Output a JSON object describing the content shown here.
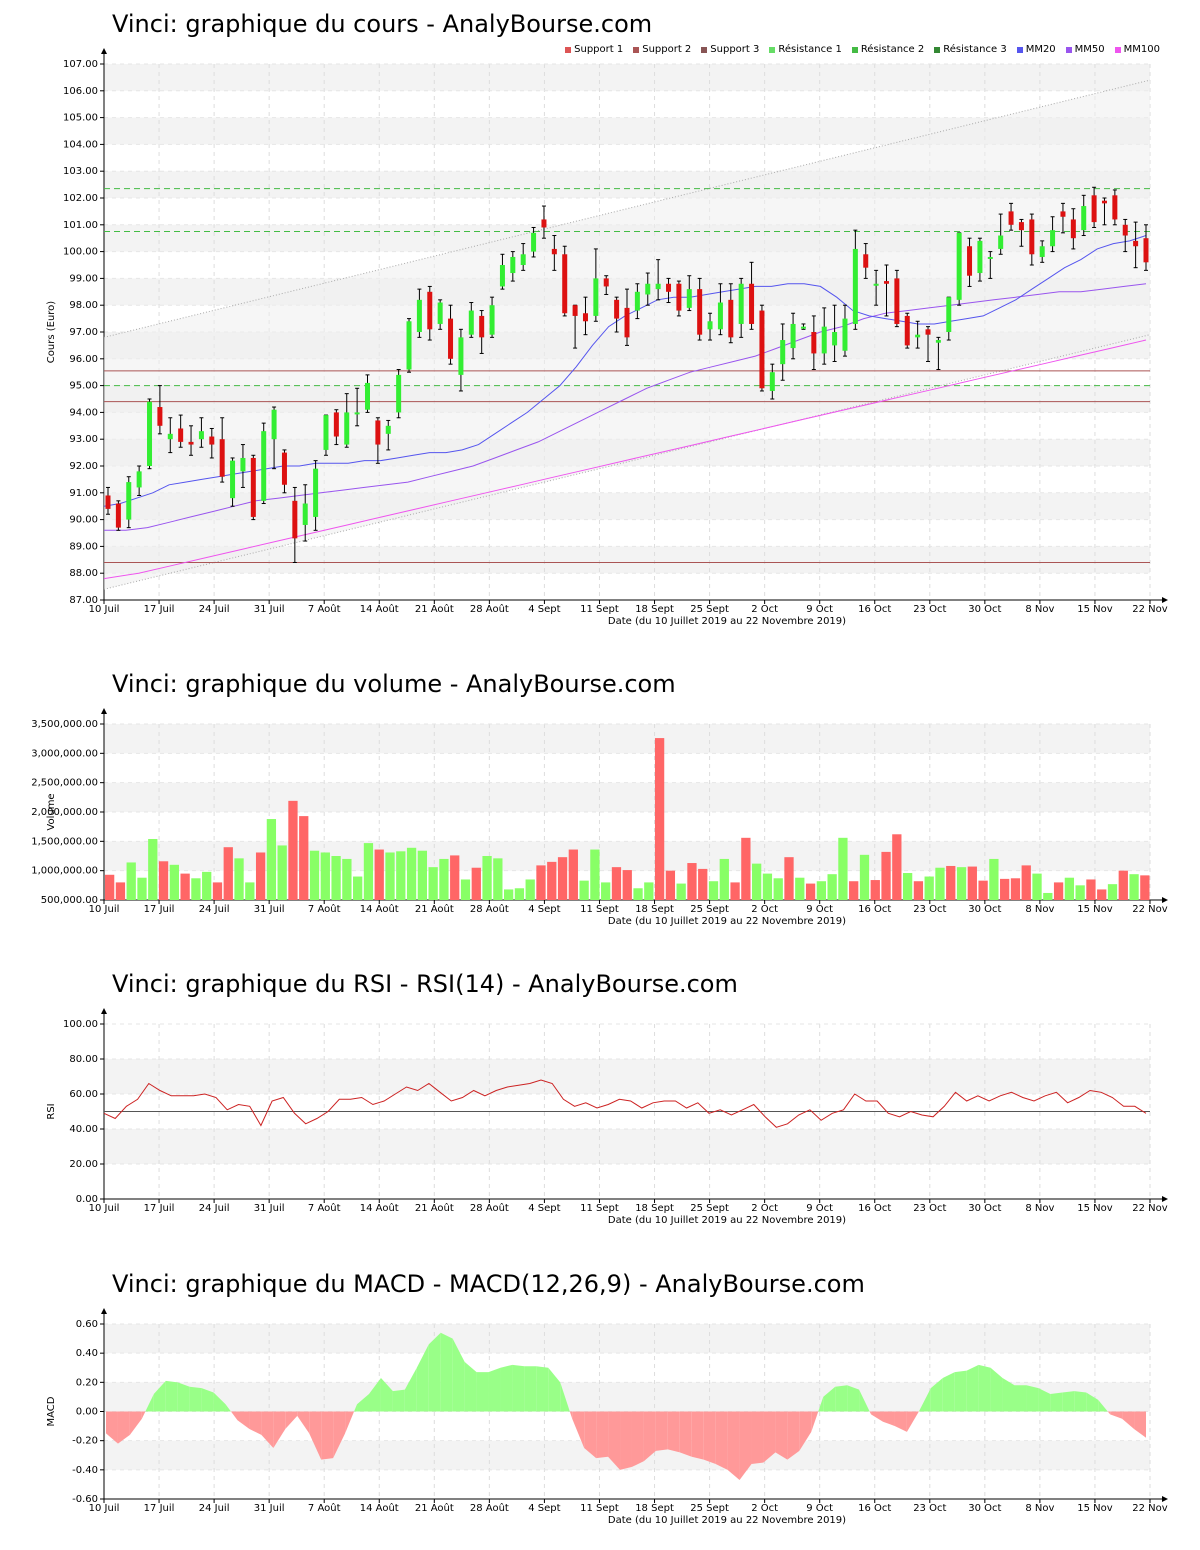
{
  "x_axis": {
    "ticks": [
      "10 Juil",
      "17 Juil",
      "24 Juil",
      "31 Juil",
      "7 Août",
      "14 Août",
      "21 Août",
      "28 Août",
      "4 Sept",
      "11 Sept",
      "18 Sept",
      "25 Sept",
      "2 Oct",
      "9 Oct",
      "16 Oct",
      "23 Oct",
      "30 Oct",
      "8 Nov",
      "15 Nov",
      "22 Nov"
    ],
    "label": "Date (du 10 Juillet 2019 au 22 Novembre 2019)"
  },
  "colors": {
    "up": "#33ee33",
    "down": "#dd1111",
    "vol_up": "#88ff66",
    "vol_down": "#ff6666",
    "mm20": "#5555ee",
    "mm50": "#9955ee",
    "mm100": "#ee55ee",
    "support": "#aa5555",
    "resistance": "#44bb44"
  },
  "price_panel": {
    "title": "Vinci: graphique du cours - AnalyBourse.com",
    "ylabel": "Cours (Euro)",
    "legend": [
      {
        "label": "Support 1",
        "color": "#dd5555"
      },
      {
        "label": "Support 2",
        "color": "#aa5555"
      },
      {
        "label": "Support 3",
        "color": "#885555"
      },
      {
        "label": "Résistance 1",
        "color": "#66dd66"
      },
      {
        "label": "Résistance 2",
        "color": "#44bb44"
      },
      {
        "label": "Résistance 3",
        "color": "#338833"
      },
      {
        "label": "MM20",
        "color": "#5555ee"
      },
      {
        "label": "MM50",
        "color": "#9955ee"
      },
      {
        "label": "MM100",
        "color": "#ee55ee"
      }
    ]
  },
  "volume_panel": {
    "title": "Vinci: graphique du volume - AnalyBourse.com",
    "ylabel": "Volume"
  },
  "rsi_panel": {
    "title": "Vinci: graphique du RSI - RSI(14) - AnalyBourse.com",
    "ylabel": "RSI"
  },
  "macd_panel": {
    "title": "Vinci: graphique du MACD - MACD(12,26,9) - AnalyBourse.com",
    "ylabel": "MACD"
  },
  "chart_data": [
    {
      "type": "candlestick",
      "title": "Vinci: graphique du cours - AnalyBourse.com",
      "ylabel": "Cours (Euro)",
      "xlabel": "Date (du 10 Juillet 2019 au 22 Novembre 2019)",
      "ylim": [
        87,
        107
      ],
      "yticks": [
        "87.00",
        "88.00",
        "89.00",
        "90.00",
        "91.00",
        "92.00",
        "93.00",
        "94.00",
        "95.00",
        "96.00",
        "97.00",
        "98.00",
        "99.00",
        "100.00",
        "101.00",
        "102.00",
        "103.00",
        "104.00",
        "105.00",
        "106.00",
        "107.00"
      ],
      "candles": [
        [
          90.9,
          90.4,
          91.2,
          90.2
        ],
        [
          90.6,
          89.7,
          90.7,
          89.6
        ],
        [
          90.0,
          91.4,
          91.6,
          89.7
        ],
        [
          91.2,
          91.8,
          92.0,
          90.9
        ],
        [
          92.0,
          94.4,
          94.5,
          91.9
        ],
        [
          94.2,
          93.5,
          95.0,
          93.2
        ],
        [
          93.0,
          93.2,
          93.8,
          92.5
        ],
        [
          93.4,
          92.9,
          93.9,
          92.7
        ],
        [
          92.9,
          92.8,
          93.5,
          92.4
        ],
        [
          93.0,
          93.3,
          93.8,
          92.7
        ],
        [
          93.1,
          92.8,
          93.4,
          92.3
        ],
        [
          93.0,
          91.6,
          93.8,
          91.4
        ],
        [
          90.8,
          92.2,
          92.3,
          90.5
        ],
        [
          91.8,
          92.3,
          92.8,
          91.2
        ],
        [
          92.3,
          90.1,
          92.4,
          90.0
        ],
        [
          90.7,
          93.3,
          93.6,
          90.6
        ],
        [
          93.0,
          94.1,
          94.2,
          91.9
        ],
        [
          92.5,
          91.3,
          92.6,
          91.0
        ],
        [
          90.7,
          89.3,
          91.2,
          88.4
        ],
        [
          89.8,
          90.6,
          91.3,
          89.2
        ],
        [
          90.1,
          91.9,
          92.2,
          89.6
        ],
        [
          92.6,
          93.9,
          93.9,
          92.4
        ],
        [
          94.0,
          93.1,
          94.1,
          92.8
        ],
        [
          92.8,
          94.0,
          94.7,
          92.7
        ],
        [
          94.0,
          94.0,
          94.9,
          93.5
        ],
        [
          94.1,
          95.1,
          95.4,
          94.0
        ],
        [
          93.7,
          92.8,
          93.8,
          92.1
        ],
        [
          93.2,
          93.5,
          93.7,
          92.6
        ],
        [
          94.0,
          95.4,
          95.6,
          93.8
        ],
        [
          95.6,
          97.4,
          97.5,
          95.5
        ],
        [
          97.0,
          98.2,
          98.6,
          96.8
        ],
        [
          98.5,
          97.1,
          98.7,
          96.7
        ],
        [
          97.3,
          98.1,
          98.2,
          97.1
        ],
        [
          97.5,
          96.0,
          98.0,
          95.8
        ],
        [
          95.4,
          96.8,
          97.1,
          94.8
        ],
        [
          96.9,
          97.8,
          98.1,
          96.8
        ],
        [
          97.6,
          96.8,
          97.8,
          96.2
        ],
        [
          96.9,
          98.0,
          98.3,
          96.8
        ],
        [
          98.7,
          99.5,
          99.9,
          98.6
        ],
        [
          99.2,
          99.8,
          100.0,
          98.9
        ],
        [
          99.5,
          99.9,
          100.3,
          99.3
        ],
        [
          100.0,
          100.7,
          100.9,
          99.8
        ],
        [
          101.2,
          100.9,
          101.7,
          100.5
        ],
        [
          100.1,
          99.9,
          100.6,
          99.3
        ],
        [
          99.9,
          97.7,
          100.2,
          97.6
        ],
        [
          98.0,
          97.6,
          98.0,
          96.4
        ],
        [
          97.7,
          97.4,
          98.3,
          96.9
        ],
        [
          97.6,
          99.0,
          100.1,
          97.4
        ],
        [
          99.0,
          98.7,
          99.1,
          98.4
        ],
        [
          98.2,
          97.5,
          98.3,
          97.0
        ],
        [
          97.9,
          96.8,
          98.6,
          96.5
        ],
        [
          97.8,
          98.5,
          98.8,
          97.5
        ],
        [
          98.4,
          98.8,
          99.2,
          98.0
        ],
        [
          98.6,
          98.8,
          99.7,
          98.2
        ],
        [
          98.8,
          98.5,
          99.0,
          98.1
        ],
        [
          98.8,
          97.8,
          98.9,
          97.6
        ],
        [
          97.9,
          98.6,
          99.1,
          97.8
        ],
        [
          98.6,
          96.9,
          99.0,
          96.7
        ],
        [
          97.1,
          97.4,
          97.7,
          96.7
        ],
        [
          97.1,
          98.1,
          98.8,
          96.9
        ],
        [
          98.2,
          96.8,
          98.8,
          96.6
        ],
        [
          97.3,
          98.8,
          99.0,
          96.8
        ],
        [
          98.8,
          97.3,
          99.6,
          97.1
        ],
        [
          97.8,
          94.9,
          98.0,
          94.8
        ],
        [
          94.8,
          95.5,
          95.8,
          94.5
        ],
        [
          95.8,
          96.7,
          97.3,
          95.2
        ],
        [
          96.4,
          97.3,
          97.7,
          96.0
        ],
        [
          97.2,
          97.2,
          97.3,
          97.1
        ],
        [
          97.0,
          96.2,
          97.6,
          95.6
        ],
        [
          96.2,
          97.2,
          97.9,
          95.8
        ],
        [
          96.5,
          97.0,
          98.0,
          95.9
        ],
        [
          96.3,
          97.5,
          98.0,
          96.1
        ],
        [
          97.3,
          100.1,
          100.8,
          97.1
        ],
        [
          99.9,
          99.4,
          100.3,
          99.0
        ],
        [
          98.8,
          98.8,
          99.3,
          98.0
        ],
        [
          98.9,
          98.8,
          99.5,
          97.6
        ],
        [
          99.0,
          97.3,
          99.3,
          97.2
        ],
        [
          97.6,
          96.5,
          97.7,
          96.4
        ],
        [
          96.8,
          96.9,
          97.4,
          96.4
        ],
        [
          97.1,
          96.9,
          97.2,
          95.9
        ],
        [
          96.6,
          96.7,
          96.8,
          95.6
        ],
        [
          97.0,
          98.3,
          98.3,
          96.7
        ],
        [
          98.2,
          100.7,
          100.7,
          98.0
        ],
        [
          100.2,
          99.1,
          100.5,
          98.7
        ],
        [
          99.2,
          100.4,
          100.5,
          98.9
        ],
        [
          99.8,
          99.8,
          100.0,
          99.0
        ],
        [
          100.1,
          100.6,
          101.4,
          99.9
        ],
        [
          101.5,
          101.0,
          101.8,
          100.8
        ],
        [
          101.1,
          100.8,
          101.2,
          100.2
        ],
        [
          101.2,
          99.9,
          101.4,
          99.5
        ],
        [
          99.8,
          100.2,
          100.4,
          99.6
        ],
        [
          100.2,
          100.8,
          101.3,
          100.0
        ],
        [
          101.5,
          101.3,
          101.8,
          100.7
        ],
        [
          101.2,
          100.5,
          101.6,
          100.1
        ],
        [
          100.8,
          101.7,
          102.1,
          100.6
        ],
        [
          102.1,
          101.1,
          102.4,
          100.9
        ],
        [
          101.9,
          101.8,
          102.0,
          101.0
        ],
        [
          102.1,
          101.2,
          102.3,
          101.0
        ],
        [
          101.0,
          100.6,
          101.2,
          100.0
        ],
        [
          100.4,
          100.2,
          101.1,
          99.4
        ],
        [
          100.5,
          99.6,
          101.0,
          99.3
        ]
      ],
      "mm20": [
        90.5,
        90.6,
        90.8,
        91.0,
        91.3,
        91.4,
        91.5,
        91.6,
        91.7,
        91.8,
        91.9,
        92.0,
        92.0,
        92.1,
        92.1,
        92.1,
        92.2,
        92.2,
        92.3,
        92.4,
        92.5,
        92.5,
        92.6,
        92.8,
        93.2,
        93.6,
        94.0,
        94.5,
        95.0,
        95.7,
        96.5,
        97.2,
        97.6,
        97.9,
        98.2,
        98.3,
        98.3,
        98.4,
        98.5,
        98.6,
        98.7,
        98.7,
        98.8,
        98.8,
        98.7,
        98.3,
        97.8,
        97.6,
        97.5,
        97.4,
        97.3,
        97.3,
        97.4,
        97.5,
        97.6,
        97.9,
        98.2,
        98.6,
        99.0,
        99.4,
        99.7,
        100.1,
        100.3,
        100.4,
        100.6
      ],
      "mm50": [
        89.6,
        89.6,
        89.7,
        89.9,
        90.1,
        90.3,
        90.5,
        90.7,
        90.8,
        90.9,
        91.0,
        91.1,
        91.2,
        91.3,
        91.4,
        91.6,
        91.8,
        92.0,
        92.3,
        92.6,
        92.9,
        93.3,
        93.7,
        94.1,
        94.5,
        94.9,
        95.2,
        95.5,
        95.7,
        95.9,
        96.1,
        96.4,
        96.7,
        97.0,
        97.2,
        97.5,
        97.7,
        97.8,
        97.9,
        98.0,
        98.1,
        98.2,
        98.3,
        98.4,
        98.5,
        98.5,
        98.6,
        98.7,
        98.8
      ],
      "mm100": [
        87.8,
        88.0,
        88.3,
        88.6,
        88.9,
        89.2,
        89.5,
        89.8,
        90.1,
        90.4,
        90.7,
        91.0,
        91.3,
        91.6,
        91.9,
        92.2,
        92.5,
        92.8,
        93.1,
        93.4,
        93.7,
        94.0,
        94.3,
        94.6,
        94.9,
        95.2,
        95.5,
        95.8,
        96.1,
        96.4,
        96.7
      ],
      "supports": [
        95.55,
        94.4,
        88.4
      ],
      "resistances": [
        95.0,
        100.75,
        102.35
      ]
    },
    {
      "type": "bar",
      "title": "Vinci: graphique du volume - AnalyBourse.com",
      "ylabel": "Volume",
      "ylim": [
        500000,
        3500000
      ],
      "yticks": [
        "500,000.00",
        "1,000,000.00",
        "1,500,000.00",
        "2,000,000.00",
        "2,500,000.00",
        "3,000,000.00",
        "3,500,000.00"
      ],
      "values": [
        930000,
        800000,
        1140000,
        880000,
        1540000,
        1160000,
        1100000,
        950000,
        870000,
        980000,
        800000,
        1400000,
        1210000,
        800000,
        1310000,
        1880000,
        1430000,
        2190000,
        1930000,
        1340000,
        1310000,
        1250000,
        1200000,
        900000,
        1470000,
        1360000,
        1310000,
        1330000,
        1390000,
        1340000,
        1060000,
        1200000,
        1260000,
        850000,
        1050000,
        1250000,
        1210000,
        680000,
        700000,
        850000,
        1090000,
        1150000,
        1230000,
        1360000,
        830000,
        1360000,
        800000,
        1060000,
        1010000,
        700000,
        800000,
        3260000,
        1000000,
        780000,
        1130000,
        1030000,
        820000,
        1200000,
        800000,
        1560000,
        1120000,
        950000,
        870000,
        1230000,
        880000,
        780000,
        820000,
        940000,
        1560000,
        820000,
        1270000,
        840000,
        1320000,
        1620000,
        960000,
        820000,
        900000,
        1050000,
        1080000,
        1060000,
        1070000,
        830000,
        1200000,
        860000,
        870000,
        1090000,
        950000,
        620000,
        800000,
        880000,
        750000,
        850000,
        680000,
        770000,
        1000000,
        940000,
        920000
      ],
      "up": [
        0,
        0,
        1,
        1,
        1,
        0,
        1,
        0,
        1,
        1,
        0,
        0,
        1,
        1,
        0,
        1,
        1,
        0,
        0,
        1,
        1,
        1,
        1,
        1,
        1,
        0,
        1,
        1,
        1,
        1,
        1,
        1,
        0,
        1,
        0,
        1,
        1,
        1,
        1,
        1,
        0,
        0,
        0,
        0,
        1,
        1,
        1,
        0,
        0,
        1,
        1,
        0,
        0,
        1,
        0,
        0,
        1,
        1,
        0,
        0,
        1,
        1,
        1,
        0,
        1,
        0,
        1,
        1,
        1,
        0,
        1,
        0,
        0,
        0,
        1,
        0,
        1,
        1,
        0,
        1,
        0,
        0,
        1,
        0,
        0,
        0,
        1,
        1,
        0,
        1,
        1,
        0,
        0,
        1,
        0,
        1,
        0
      ]
    },
    {
      "type": "line",
      "title": "Vinci: graphique du RSI - RSI(14) - AnalyBourse.com",
      "ylabel": "RSI",
      "ylim": [
        0,
        100
      ],
      "yticks": [
        "0.00",
        "20.00",
        "40.00",
        "60.00",
        "80.00",
        "100.00"
      ],
      "reference": 50,
      "values": [
        49,
        46,
        53,
        57,
        66,
        62,
        59,
        59,
        59,
        60,
        58,
        51,
        54,
        53,
        42,
        56,
        58,
        49,
        43,
        46,
        50,
        57,
        57,
        58,
        54,
        56,
        60,
        64,
        62,
        66,
        61,
        56,
        58,
        62,
        59,
        62,
        64,
        65,
        66,
        68,
        66,
        57,
        53,
        55,
        52,
        54,
        57,
        56,
        52,
        55,
        56,
        56,
        52,
        55,
        49,
        51,
        48,
        51,
        54,
        47,
        41,
        43,
        48,
        51,
        45,
        49,
        51,
        60,
        56,
        56,
        49,
        47,
        50,
        48,
        47,
        53,
        61,
        56,
        59,
        56,
        59,
        61,
        58,
        56,
        59,
        61,
        55,
        58,
        62,
        61,
        58,
        53,
        53,
        49
      ],
      "line_color": "#cc2222"
    },
    {
      "type": "area",
      "title": "Vinci: graphique du MACD - MACD(12,26,9) - AnalyBourse.com",
      "ylabel": "MACD",
      "ylim": [
        -0.6,
        0.6
      ],
      "yticks": [
        "-0.60",
        "-0.40",
        "-0.20",
        "0.00",
        "0.20",
        "0.40",
        "0.60"
      ],
      "values": [
        -0.15,
        -0.22,
        -0.16,
        -0.05,
        0.12,
        0.21,
        0.2,
        0.17,
        0.16,
        0.13,
        0.05,
        -0.06,
        -0.12,
        -0.16,
        -0.25,
        -0.12,
        -0.03,
        -0.15,
        -0.33,
        -0.32,
        -0.15,
        0.05,
        0.12,
        0.23,
        0.14,
        0.15,
        0.3,
        0.46,
        0.54,
        0.5,
        0.34,
        0.27,
        0.27,
        0.3,
        0.32,
        0.31,
        0.31,
        0.3,
        0.2,
        -0.05,
        -0.25,
        -0.32,
        -0.31,
        -0.4,
        -0.38,
        -0.34,
        -0.27,
        -0.26,
        -0.28,
        -0.31,
        -0.33,
        -0.36,
        -0.4,
        -0.47,
        -0.36,
        -0.35,
        -0.28,
        -0.33,
        -0.27,
        -0.14,
        0.1,
        0.17,
        0.18,
        0.15,
        -0.02,
        -0.07,
        -0.1,
        -0.14,
        0.0,
        0.16,
        0.23,
        0.27,
        0.28,
        0.32,
        0.3,
        0.23,
        0.18,
        0.18,
        0.16,
        0.12,
        0.13,
        0.14,
        0.13,
        0.08,
        -0.02,
        -0.05,
        -0.12,
        -0.18
      ],
      "pos_color": "#99ff88",
      "neg_color": "#ff9999"
    }
  ]
}
